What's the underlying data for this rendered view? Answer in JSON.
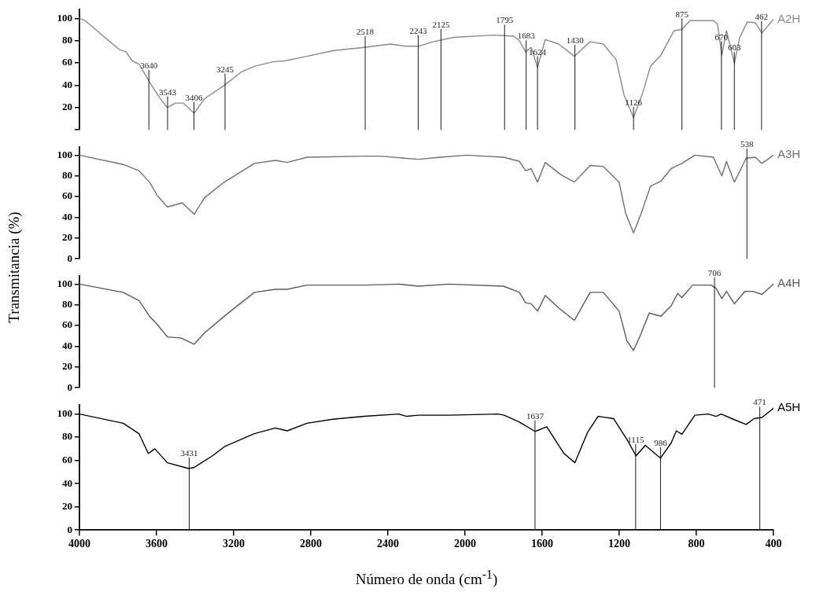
{
  "chart_data": [
    {
      "type": "line",
      "tick_labels": "y",
      "marker": "none",
      "x": [
        4000,
        3971,
        3909,
        3869,
        3793,
        3759,
        3727,
        3691,
        3637,
        3589,
        3544,
        3502,
        3461,
        3405,
        3351,
        3257,
        3160,
        3093,
        2997,
        2931,
        2820,
        2686,
        2522,
        2385,
        2310,
        2242,
        2167,
        2058,
        1854,
        1747,
        1718,
        1686,
        1657,
        1624,
        1584,
        1514,
        1433,
        1351,
        1283,
        1216,
        1175,
        1126,
        1079,
        1038,
        984,
        916,
        875,
        834,
        712,
        691,
        668,
        644,
        603,
        575,
        535,
        494,
        460,
        400
      ],
      "series": [
        {
          "name": "A2H",
          "color": "#8a8a8a",
          "values": [
            100,
            98,
            89,
            83,
            72,
            70,
            62,
            59,
            43,
            30,
            20,
            24,
            24,
            15,
            28,
            39,
            52,
            57,
            61,
            62,
            66,
            71,
            74,
            77,
            75,
            75,
            79,
            83,
            85,
            84,
            80,
            70,
            74,
            56,
            81,
            77,
            66,
            79,
            77,
            63,
            31,
            11,
            33,
            57,
            67,
            89,
            90,
            98,
            98,
            95,
            67,
            89,
            60,
            83,
            97,
            96,
            87,
            99
          ]
        }
      ],
      "xlim": [
        4000,
        400
      ],
      "xticks": [
        4000,
        3600,
        3200,
        2800,
        2400,
        2000,
        1600,
        1200,
        800,
        400
      ],
      "ylim": [
        0,
        108
      ],
      "yticks": [
        {
          "value": 0,
          "label": null
        },
        20,
        40,
        60,
        80,
        100
      ],
      "ref_lines": [
        {
          "axis": "x",
          "value": 3640,
          "label": "3640"
        },
        {
          "axis": "x",
          "value": 3543,
          "label": "3543"
        },
        {
          "axis": "x",
          "value": 3406,
          "label": "3406"
        },
        {
          "axis": "x",
          "value": 3245,
          "label": "3245"
        },
        {
          "axis": "x",
          "value": 2518,
          "label": "2518"
        },
        {
          "axis": "x",
          "value": 2243,
          "label": "2243"
        },
        {
          "axis": "x",
          "value": 2125,
          "label": "2125"
        },
        {
          "axis": "x",
          "value": 1795,
          "label": "1795"
        },
        {
          "axis": "x",
          "value": 1683,
          "label": "1683"
        },
        {
          "axis": "x",
          "value": 1624,
          "label": "1624"
        },
        {
          "axis": "x",
          "value": 1430,
          "label": "1430"
        },
        {
          "axis": "x",
          "value": 1126,
          "label": "1126"
        },
        {
          "axis": "x",
          "value": 875,
          "label": "875"
        },
        {
          "axis": "x",
          "value": 670,
          "label": "670"
        },
        {
          "axis": "x",
          "value": 603,
          "label": "603"
        },
        {
          "axis": "x",
          "value": 462,
          "label": "462"
        }
      ]
    },
    {
      "type": "line",
      "tick_labels": "y",
      "marker": "none",
      "ylabel": "Transmitancia (%)",
      "x": [
        4000,
        3773,
        3691,
        3637,
        3596,
        3544,
        3467,
        3405,
        3351,
        3256,
        3093,
        2984,
        2922,
        2820,
        2522,
        2440,
        2242,
        2127,
        1992,
        1800,
        1718,
        1686,
        1657,
        1624,
        1584,
        1502,
        1433,
        1351,
        1283,
        1201,
        1167,
        1126,
        1086,
        1038,
        984,
        931,
        875,
        808,
        712,
        668,
        644,
        603,
        542,
        494,
        460,
        400
      ],
      "series": [
        {
          "name": "A3H",
          "color": "#707070",
          "values": [
            100,
            91,
            85,
            74,
            61,
            50,
            54,
            43,
            59,
            73,
            92,
            95,
            93,
            98,
            99,
            99,
            96,
            98,
            100,
            98,
            94,
            85,
            87,
            74,
            93,
            81,
            74,
            90,
            89,
            74,
            44,
            25,
            44,
            70,
            75,
            87,
            92,
            100,
            98,
            80,
            94,
            74,
            97,
            98,
            92,
            100
          ]
        }
      ],
      "xlim": [
        4000,
        400
      ],
      "xticks": [
        4000,
        3600,
        3200,
        2800,
        2400,
        2000,
        1600,
        1200,
        800,
        400
      ],
      "ylim": [
        0,
        108
      ],
      "yticks": [
        0,
        20,
        40,
        60,
        80,
        100
      ],
      "ref_lines": [
        {
          "axis": "x",
          "value": 538,
          "label": "538"
        }
      ]
    },
    {
      "type": "line",
      "tick_labels": "y",
      "marker": "none",
      "x": [
        4000,
        3773,
        3691,
        3637,
        3596,
        3544,
        3473,
        3405,
        3351,
        3242,
        3093,
        2984,
        2922,
        2820,
        2522,
        2344,
        2242,
        2086,
        1800,
        1718,
        1686,
        1657,
        1624,
        1584,
        1514,
        1433,
        1351,
        1283,
        1201,
        1160,
        1126,
        1092,
        1045,
        984,
        931,
        897,
        875,
        820,
        725,
        698,
        668,
        644,
        603,
        548,
        507,
        460,
        400
      ],
      "series": [
        {
          "name": "A4H",
          "color": "#5a5a5a",
          "values": [
            100,
            92,
            84,
            69,
            61,
            49,
            48,
            42,
            53,
            70,
            92,
            95,
            95,
            99,
            99,
            100,
            98,
            100,
            98,
            92,
            82,
            81,
            74,
            89,
            77,
            65,
            92,
            92,
            74,
            45,
            36,
            50,
            72,
            69,
            79,
            91,
            87,
            99,
            99,
            96,
            86,
            93,
            81,
            93,
            93,
            90,
            100
          ]
        }
      ],
      "xlim": [
        4000,
        400
      ],
      "xticks": [
        4000,
        3600,
        3200,
        2800,
        2400,
        2000,
        1600,
        1200,
        800,
        400
      ],
      "ylim": [
        0,
        108
      ],
      "yticks": [
        0,
        20,
        40,
        60,
        80,
        100
      ],
      "ref_lines": [
        {
          "axis": "x",
          "value": 706,
          "label": "706"
        }
      ]
    },
    {
      "type": "line",
      "marker": "none",
      "xlabel": "Número de onda (cm$^{-1}$)",
      "x": [
        4000,
        3773,
        3691,
        3643,
        3609,
        3544,
        3433,
        3405,
        3310,
        3247,
        3093,
        2984,
        2922,
        2820,
        2686,
        2522,
        2344,
        2303,
        2242,
        2086,
        1829,
        1797,
        1718,
        1637,
        1576,
        1487,
        1430,
        1365,
        1310,
        1229,
        1160,
        1113,
        1065,
        986,
        931,
        904,
        875,
        808,
        738,
        698,
        671,
        616,
        542,
        501,
        460,
        400
      ],
      "series": [
        {
          "name": "A5H",
          "color": "#000000",
          "values": [
            100,
            92,
            83,
            66,
            70,
            58,
            53,
            54,
            64,
            72,
            83,
            88,
            85.5,
            92,
            95.5,
            98,
            100,
            98,
            99,
            99,
            100,
            99,
            93,
            85,
            89,
            66,
            58,
            84,
            98,
            96,
            78,
            64,
            73,
            62,
            75,
            85.5,
            82.5,
            99,
            100,
            98,
            100,
            96,
            91,
            96,
            97,
            105
          ]
        }
      ],
      "xlim": [
        4000,
        400
      ],
      "xticks": [
        4000,
        3600,
        3200,
        2800,
        2400,
        2000,
        1600,
        1200,
        800,
        400
      ],
      "ylim": [
        0,
        108
      ],
      "yticks": [
        0,
        20,
        40,
        60,
        80,
        100
      ],
      "ref_lines": [
        {
          "axis": "x",
          "value": 3431,
          "label": "3431"
        },
        {
          "axis": "x",
          "value": 1637,
          "label": "1637"
        },
        {
          "axis": "x",
          "value": 1115,
          "label": "1115"
        },
        {
          "axis": "x",
          "value": 986,
          "label": "986"
        },
        {
          "axis": "x",
          "value": 471,
          "label": "471"
        }
      ]
    }
  ]
}
